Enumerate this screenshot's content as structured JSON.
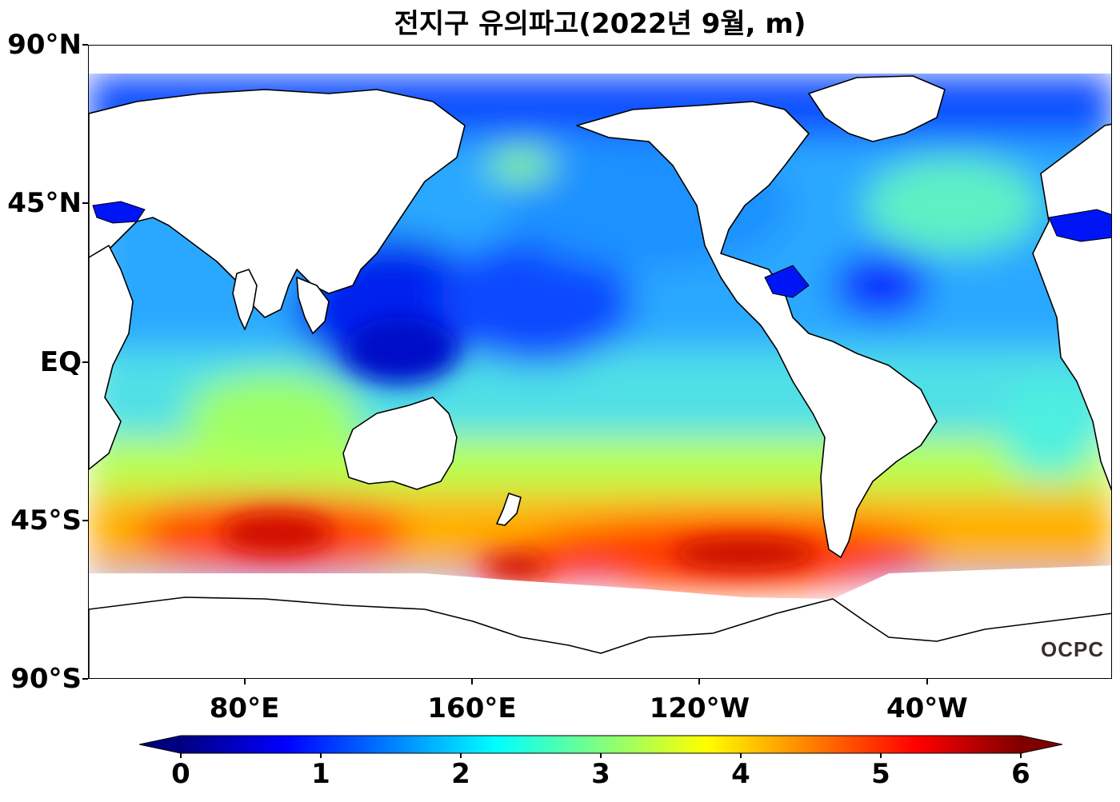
{
  "title": "전지구 유의파고(2022년 9월, m)",
  "map": {
    "projection": "equirectangular, centered at 160°W",
    "lon_range": [
      25,
      385
    ],
    "lat_range": [
      -90,
      90
    ],
    "lat_ticks": [
      {
        "lat": 90,
        "label": "90°N"
      },
      {
        "lat": 45,
        "label": "45°N"
      },
      {
        "lat": 0,
        "label": "EQ"
      },
      {
        "lat": -45,
        "label": "45°S"
      },
      {
        "lat": -90,
        "label": "90°S"
      }
    ],
    "lon_ticks": [
      {
        "lon": 80,
        "label": "80°E"
      },
      {
        "lon": 160,
        "label": "160°E"
      },
      {
        "lon": 240,
        "label": "120°W"
      },
      {
        "lon": 320,
        "label": "40°W"
      }
    ],
    "land_color": "#ffffff",
    "coast_color": "#000000"
  },
  "colorbar": {
    "ticks": [
      "0",
      "1",
      "2",
      "3",
      "4",
      "5",
      "6"
    ],
    "min": 0,
    "max": 6,
    "extend": "both",
    "colormap": [
      "#00007f",
      "#0000ff",
      "#007fff",
      "#00ffff",
      "#7fff7f",
      "#ffff00",
      "#ff7f00",
      "#ff0000",
      "#7f0000"
    ]
  },
  "logo": "OCPC"
}
